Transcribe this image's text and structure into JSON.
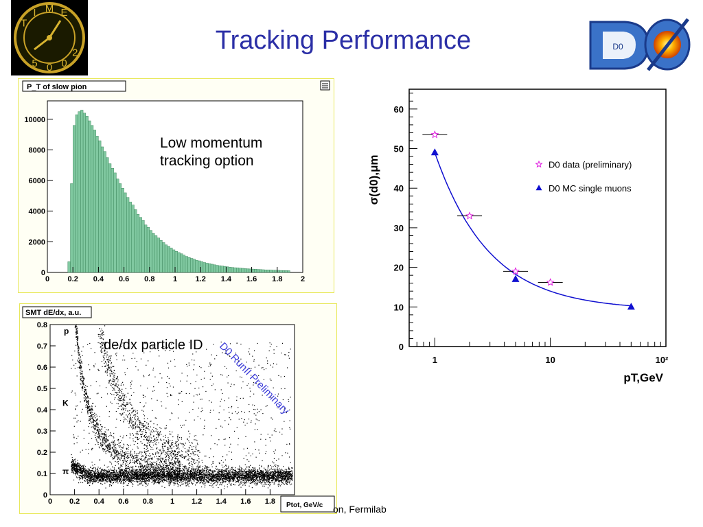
{
  "slide": {
    "title": "Tracking Performance",
    "footer": "on, Fermilab"
  },
  "logos": {
    "time": {
      "letters": [
        "T",
        "I",
        "M",
        "E",
        "2",
        "0",
        "0",
        "5"
      ]
    },
    "d0": {
      "text": "D0"
    }
  },
  "colors": {
    "title": "#2b2fa6",
    "hist_fill": "#80c8a0",
    "panel_bg": "#fffff4",
    "panel_border": "#e8e85a",
    "data_marker": "#e020e0",
    "mc_marker": "#1010d0",
    "watermark": "#3a3ad8"
  },
  "chart_data": [
    {
      "type": "bar",
      "title": "P_T of slow pion",
      "annotation": "Low momentum\ntracking option",
      "xlim": [
        0,
        2
      ],
      "ylim": [
        0,
        11200
      ],
      "x_ticks": [
        "0",
        "0.2",
        "0.4",
        "0.6",
        "0.8",
        "1",
        "1.2",
        "1.4",
        "1.6",
        "1.8",
        "2"
      ],
      "y_ticks": [
        "0",
        "2000",
        "4000",
        "6000",
        "8000",
        "10000"
      ],
      "bin_width": 0.02,
      "bin_start": 0.16,
      "values": [
        700,
        5800,
        9600,
        10300,
        10500,
        10600,
        10400,
        10200,
        9900,
        9600,
        9300,
        8900,
        8600,
        8200,
        7900,
        7500,
        7100,
        6800,
        6500,
        6100,
        5800,
        5500,
        5200,
        4900,
        4600,
        4400,
        4100,
        3800,
        3600,
        3400,
        3100,
        2950,
        2750,
        2550,
        2400,
        2250,
        2100,
        1950,
        1800,
        1700,
        1600,
        1480,
        1380,
        1300,
        1220,
        1130,
        1050,
        980,
        920,
        860,
        800,
        760,
        700,
        650,
        610,
        570,
        540,
        500,
        470,
        440,
        420,
        400,
        370,
        350,
        330,
        310,
        300,
        280,
        270,
        250,
        240,
        230,
        220,
        210,
        200,
        190,
        180,
        170,
        165,
        160,
        150,
        145,
        140,
        130,
        125,
        120,
        115
      ]
    },
    {
      "type": "scatter",
      "title": "SMT dE/dx, a.u.",
      "xlabel": "Ptot, GeV/c",
      "annotation": "de/dx particle ID",
      "watermark": "D0 RunII Preliminary",
      "band_labels": [
        "p",
        "K",
        "π"
      ],
      "xlim": [
        0,
        2
      ],
      "ylim": [
        0,
        0.8
      ],
      "x_ticks": [
        "0",
        "0.2",
        "0.4",
        "0.6",
        "0.8",
        "1",
        "1.2",
        "1.4",
        "1.6",
        "1.8"
      ],
      "y_ticks": [
        "0",
        "0.1",
        "0.2",
        "0.3",
        "0.4",
        "0.5",
        "0.6",
        "0.7",
        "0.8"
      ],
      "bands": [
        {
          "name": "π",
          "y_level": 0.1
        },
        {
          "name": "K",
          "y_level": 0.42
        },
        {
          "name": "p",
          "y_level": 0.78
        }
      ]
    },
    {
      "type": "scatter",
      "ylabel": "σ(d0),μm",
      "xlabel": "pT,GeV",
      "x_scale": "log",
      "xlim": [
        0.6,
        100
      ],
      "ylim": [
        0,
        65
      ],
      "x_ticks": [
        "1",
        "10",
        "10²"
      ],
      "y_ticks": [
        "0",
        "10",
        "20",
        "30",
        "40",
        "50",
        "60"
      ],
      "legend_position": "right",
      "series": [
        {
          "name": "D0 data (preliminary)",
          "marker": "star",
          "x": [
            1,
            2,
            5,
            10
          ],
          "y": [
            53.5,
            33,
            19,
            16.2
          ]
        },
        {
          "name": "D0 MC single muons",
          "marker": "triangle",
          "x": [
            1,
            5,
            50
          ],
          "y": [
            49,
            17,
            10
          ]
        }
      ]
    }
  ]
}
